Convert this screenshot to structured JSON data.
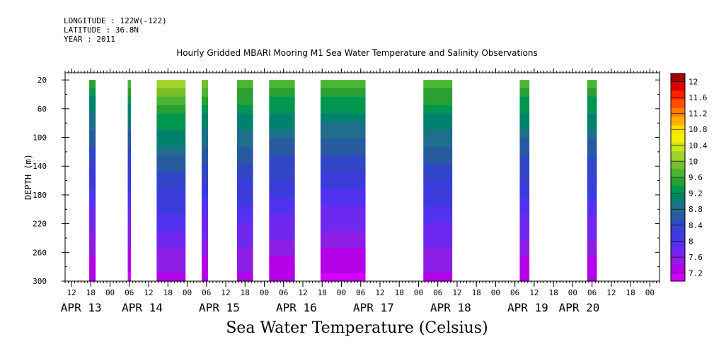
{
  "header": {
    "longitude": "LONGITUDE : 122W(-122)",
    "latitude": "LATITUDE : 36.8N",
    "year": "YEAR : 2011"
  },
  "chart_data": {
    "type": "heatmap",
    "title": "Hourly Gridded MBARI Mooring M1 Sea Water Temperature and Salinity Observations",
    "subtitle": "Sea Water Temperature (Celsius)",
    "ylabel": "DEPTH (m)",
    "xlabel": "",
    "y_range": [
      10,
      300
    ],
    "y_inverted": true,
    "y_ticks": [
      20,
      60,
      100,
      140,
      180,
      220,
      260,
      300
    ],
    "x_range_hours": [
      -2,
      183
    ],
    "x_hour_ticks": [
      {
        "h": 0,
        "label": "12"
      },
      {
        "h": 6,
        "label": "18"
      },
      {
        "h": 12,
        "label": "00"
      },
      {
        "h": 18,
        "label": "06"
      },
      {
        "h": 24,
        "label": "12"
      },
      {
        "h": 30,
        "label": "18"
      },
      {
        "h": 36,
        "label": "00"
      },
      {
        "h": 42,
        "label": "06"
      },
      {
        "h": 48,
        "label": "12"
      },
      {
        "h": 54,
        "label": "18"
      },
      {
        "h": 60,
        "label": "00"
      },
      {
        "h": 66,
        "label": "06"
      },
      {
        "h": 72,
        "label": "12"
      },
      {
        "h": 78,
        "label": "18"
      },
      {
        "h": 84,
        "label": "00"
      },
      {
        "h": 90,
        "label": "06"
      },
      {
        "h": 96,
        "label": "12"
      },
      {
        "h": 102,
        "label": "18"
      },
      {
        "h": 108,
        "label": "00"
      },
      {
        "h": 114,
        "label": "06"
      },
      {
        "h": 120,
        "label": "12"
      },
      {
        "h": 126,
        "label": "18"
      },
      {
        "h": 132,
        "label": "00"
      },
      {
        "h": 138,
        "label": "06"
      },
      {
        "h": 144,
        "label": "12"
      },
      {
        "h": 150,
        "label": "18"
      },
      {
        "h": 156,
        "label": "00"
      },
      {
        "h": 162,
        "label": "06"
      },
      {
        "h": 168,
        "label": "12"
      },
      {
        "h": 174,
        "label": "18"
      },
      {
        "h": 180,
        "label": "00"
      }
    ],
    "x_day_labels": [
      {
        "h": 3,
        "label": "APR 13"
      },
      {
        "h": 22,
        "label": "APR 14"
      },
      {
        "h": 46,
        "label": "APR 15"
      },
      {
        "h": 70,
        "label": "APR 16"
      },
      {
        "h": 94,
        "label": "APR 17"
      },
      {
        "h": 118,
        "label": "APR 18"
      },
      {
        "h": 142,
        "label": "APR 19"
      },
      {
        "h": 158,
        "label": "APR 20"
      }
    ],
    "data_segments": [
      {
        "start_h": 5.5,
        "end_h": 7.5,
        "surface_temp": 9.6,
        "bottom_temp": 7.4
      },
      {
        "start_h": 17.5,
        "end_h": 18.5,
        "surface_temp": 9.8,
        "bottom_temp": 7.3
      },
      {
        "start_h": 26.5,
        "end_h": 35.5,
        "surface_temp": 10.2,
        "bottom_temp": 7.5
      },
      {
        "start_h": 40.5,
        "end_h": 42.5,
        "surface_temp": 10.0,
        "bottom_temp": 7.4
      },
      {
        "start_h": 51.5,
        "end_h": 56.5,
        "surface_temp": 9.9,
        "bottom_temp": 7.5
      },
      {
        "start_h": 61.5,
        "end_h": 69.5,
        "surface_temp": 9.9,
        "bottom_temp": 7.4
      },
      {
        "start_h": 77.5,
        "end_h": 91.5,
        "surface_temp": 9.9,
        "bottom_temp": 7.3
      },
      {
        "start_h": 109.5,
        "end_h": 118.5,
        "surface_temp": 9.9,
        "bottom_temp": 7.5
      },
      {
        "start_h": 139.5,
        "end_h": 142.5,
        "surface_temp": 9.9,
        "bottom_temp": 7.4
      },
      {
        "start_h": 160.5,
        "end_h": 163.5,
        "surface_temp": 9.9,
        "bottom_temp": 7.4
      }
    ],
    "colorbar": {
      "labels": [
        "12",
        "11.6",
        "11.2",
        "10.8",
        "10.4",
        "10",
        "9.6",
        "9.2",
        "8.8",
        "8.4",
        "8",
        "7.6",
        "7.2"
      ],
      "values": [
        12,
        11.6,
        11.2,
        10.8,
        10.4,
        10,
        9.6,
        9.2,
        8.8,
        8.4,
        8,
        7.6,
        7.2
      ],
      "colors_top_to_bottom": [
        "#a50000",
        "#d80000",
        "#ff2000",
        "#ff5000",
        "#ff8000",
        "#ffb000",
        "#ffe000",
        "#f0f000",
        "#c8e614",
        "#a0d228",
        "#78be28",
        "#4bb432",
        "#28a032",
        "#009650",
        "#00826e",
        "#1e6e8c",
        "#285aa0",
        "#3246c8",
        "#3c3cdc",
        "#5032f0",
        "#6e28f0",
        "#8c1ee6",
        "#b400e6",
        "#d200ff"
      ]
    }
  }
}
